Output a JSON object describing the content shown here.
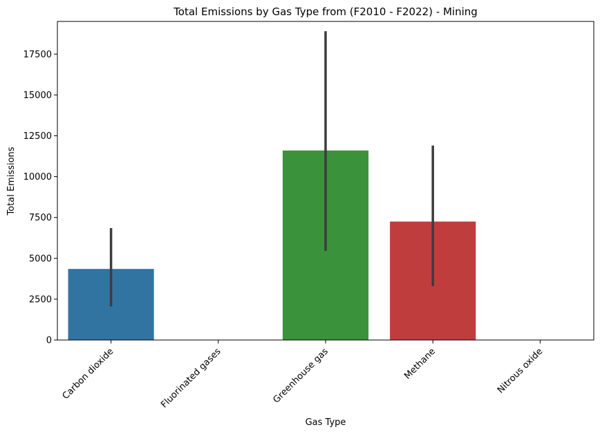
{
  "chart_data": {
    "type": "bar",
    "title": "Total Emissions by Gas Type from (F2010 - F2022) - Mining",
    "xlabel": "Gas Type",
    "ylabel": "Total Emissions",
    "categories": [
      "Carbon dioxide",
      "Fluorinated gases",
      "Greenhouse gas",
      "Methane",
      "Nitrous oxide"
    ],
    "values": [
      4350,
      0,
      11600,
      7250,
      0
    ],
    "error_bars": [
      {
        "low": 2050,
        "high": 6850
      },
      {
        "low": 0,
        "high": 0
      },
      {
        "low": 5450,
        "high": 18900
      },
      {
        "low": 3300,
        "high": 11900
      },
      {
        "low": 0,
        "high": 0
      }
    ],
    "colors": [
      "#3274a1",
      "#e1812c",
      "#3a923a",
      "#c03d3e",
      "#9372b2"
    ],
    "error_color": "#3d3d3d",
    "ylim": [
      0,
      19500
    ],
    "yticks": [
      0,
      2500,
      5000,
      7500,
      10000,
      12500,
      15000,
      17500
    ],
    "grid": false,
    "legend": "none"
  }
}
